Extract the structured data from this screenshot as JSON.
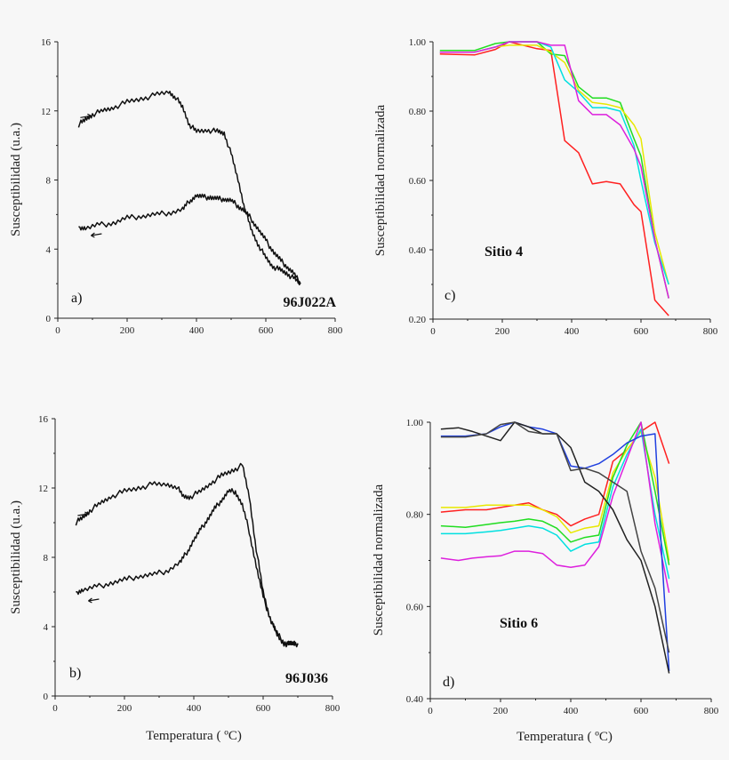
{
  "chart_data": [
    {
      "id": "a",
      "type": "line",
      "panel_label": "a)",
      "annotation": "96J022A",
      "xlabel": "",
      "ylabel": "Susceptibilidad (u.a.)",
      "xlim": [
        0,
        800
      ],
      "ylim": [
        0,
        16
      ],
      "xticks": [
        0,
        200,
        400,
        600,
        800
      ],
      "yticks": [
        0,
        4,
        8,
        12,
        16
      ],
      "ytick_labels": [
        "0",
        "4",
        "8",
        "12",
        "16"
      ],
      "series": [
        {
          "name": "heating",
          "color": "#111111",
          "x": [
            60,
            80,
            100,
            130,
            160,
            200,
            240,
            280,
            320,
            340,
            360,
            380,
            400,
            430,
            460,
            480,
            500,
            520,
            540,
            560,
            580,
            600,
            620,
            640,
            660,
            680,
            700
          ],
          "y": [
            11.2,
            11.5,
            11.8,
            12.0,
            12.2,
            12.5,
            12.7,
            12.9,
            13.1,
            12.8,
            12.2,
            11.2,
            10.8,
            10.9,
            10.8,
            10.7,
            9.5,
            8.0,
            6.3,
            5.0,
            4.2,
            3.5,
            3.0,
            2.8,
            2.6,
            2.3,
            2.0
          ]
        },
        {
          "name": "cooling",
          "color": "#111111",
          "x": [
            700,
            680,
            660,
            640,
            620,
            600,
            580,
            560,
            540,
            520,
            500,
            480,
            460,
            440,
            420,
            400,
            380,
            360,
            320,
            280,
            240,
            200,
            160,
            120,
            80,
            60
          ],
          "y": [
            2.0,
            2.6,
            3.0,
            3.4,
            3.9,
            4.5,
            5.1,
            5.7,
            6.2,
            6.5,
            6.8,
            6.9,
            6.9,
            7.0,
            7.0,
            7.1,
            6.8,
            6.3,
            6.1,
            6.0,
            5.9,
            5.8,
            5.5,
            5.4,
            5.2,
            5.3
          ]
        }
      ]
    },
    {
      "id": "b",
      "type": "line",
      "panel_label": "b)",
      "annotation": "96J036",
      "xlabel": "Temperatura ( ºC)",
      "ylabel": "Susceptibilidad (u.a.)",
      "xlim": [
        0,
        800
      ],
      "ylim": [
        0,
        16
      ],
      "xticks": [
        0,
        200,
        400,
        600,
        800
      ],
      "yticks": [
        0,
        4,
        8,
        12,
        16
      ],
      "ytick_labels": [
        "0",
        "4",
        "8",
        "12",
        "16"
      ],
      "series": [
        {
          "name": "heating",
          "color": "#111111",
          "x": [
            60,
            80,
            100,
            130,
            160,
            200,
            240,
            280,
            320,
            350,
            370,
            390,
            420,
            450,
            480,
            510,
            540,
            560,
            580,
            600,
            620,
            640,
            660,
            680,
            700
          ],
          "y": [
            10.0,
            10.3,
            10.7,
            11.1,
            11.5,
            11.8,
            12.0,
            12.2,
            12.2,
            12.1,
            11.5,
            11.5,
            11.8,
            12.3,
            12.7,
            13.0,
            13.3,
            11.5,
            8.5,
            6.0,
            4.5,
            3.5,
            3.0,
            3.0,
            3.0
          ]
        },
        {
          "name": "cooling",
          "color": "#111111",
          "x": [
            700,
            680,
            660,
            640,
            620,
            600,
            580,
            560,
            540,
            520,
            500,
            480,
            460,
            440,
            420,
            400,
            380,
            360,
            320,
            280,
            240,
            200,
            160,
            120,
            80,
            60
          ],
          "y": [
            3.0,
            3.0,
            3.1,
            3.6,
            4.5,
            5.7,
            7.5,
            9.5,
            11.0,
            11.8,
            11.8,
            11.3,
            10.8,
            10.2,
            9.6,
            9.0,
            8.3,
            7.7,
            7.2,
            7.0,
            6.9,
            6.7,
            6.5,
            6.3,
            6.1,
            6.0
          ]
        }
      ]
    },
    {
      "id": "c",
      "type": "line",
      "panel_label": "c)",
      "annotation": "Sitio 4",
      "xlabel": "",
      "ylabel": "Susceptibilidad normalizada",
      "xlim": [
        0,
        800
      ],
      "ylim": [
        0.2,
        1.0
      ],
      "xticks": [
        0,
        200,
        400,
        600,
        800
      ],
      "yticks": [
        0.2,
        0.4,
        0.6,
        0.8,
        1.0
      ],
      "ytick_labels": [
        "0.20",
        "0.40",
        "0.60",
        "0.80",
        "1.00"
      ],
      "series": [
        {
          "name": "red",
          "color": "#ff2020",
          "x": [
            20,
            120,
            180,
            220,
            300,
            340,
            380,
            420,
            460,
            500,
            540,
            580,
            600,
            640,
            680
          ],
          "y": [
            0.965,
            0.962,
            0.978,
            1.0,
            0.98,
            0.975,
            0.715,
            0.68,
            0.59,
            0.597,
            0.59,
            0.53,
            0.51,
            0.255,
            0.21
          ]
        },
        {
          "name": "green",
          "color": "#20dd20",
          "x": [
            20,
            120,
            180,
            220,
            300,
            340,
            380,
            420,
            460,
            500,
            540,
            580,
            600,
            640,
            680
          ],
          "y": [
            0.975,
            0.975,
            0.995,
            1.0,
            1.0,
            0.965,
            0.96,
            0.87,
            0.838,
            0.838,
            0.825,
            0.72,
            0.67,
            0.43,
            0.26
          ]
        },
        {
          "name": "yellow",
          "color": "#e8e800",
          "x": [
            20,
            120,
            180,
            220,
            300,
            340,
            380,
            420,
            460,
            500,
            540,
            580,
            600,
            640,
            680
          ],
          "y": [
            0.97,
            0.97,
            0.985,
            0.99,
            0.99,
            0.97,
            0.94,
            0.86,
            0.825,
            0.82,
            0.81,
            0.76,
            0.72,
            0.45,
            0.3
          ]
        },
        {
          "name": "cyan",
          "color": "#00e0e0",
          "x": [
            20,
            120,
            180,
            220,
            300,
            340,
            380,
            420,
            460,
            500,
            540,
            580,
            600,
            640,
            680
          ],
          "y": [
            0.97,
            0.97,
            0.985,
            1.0,
            1.0,
            0.985,
            0.89,
            0.855,
            0.81,
            0.81,
            0.8,
            0.7,
            0.6,
            0.42,
            0.3
          ]
        },
        {
          "name": "magenta",
          "color": "#dd20dd",
          "x": [
            20,
            120,
            180,
            220,
            300,
            340,
            380,
            420,
            460,
            500,
            540,
            580,
            600,
            640,
            680
          ],
          "y": [
            0.97,
            0.97,
            0.985,
            1.0,
            1.0,
            0.99,
            0.99,
            0.83,
            0.79,
            0.79,
            0.76,
            0.69,
            0.64,
            0.43,
            0.26
          ]
        }
      ]
    },
    {
      "id": "d",
      "type": "line",
      "panel_label": "d)",
      "annotation": "Sitio 6",
      "xlabel": "Temperatura ( ºC)",
      "ylabel": "Susceptibilidad normalizada",
      "xlim": [
        0,
        800
      ],
      "ylim": [
        0.4,
        1.0
      ],
      "xticks": [
        0,
        200,
        400,
        600,
        800
      ],
      "yticks": [
        0.4,
        0.6,
        0.8,
        1.0
      ],
      "ytick_labels": [
        "0.40",
        "0.60",
        "0.80",
        "1.00"
      ],
      "series": [
        {
          "name": "red",
          "color": "#ff2020",
          "x": [
            30,
            100,
            160,
            200,
            240,
            280,
            320,
            360,
            400,
            440,
            480,
            520,
            560,
            600,
            640,
            680
          ],
          "y": [
            0.805,
            0.81,
            0.81,
            0.815,
            0.82,
            0.825,
            0.81,
            0.8,
            0.775,
            0.79,
            0.8,
            0.915,
            0.94,
            0.98,
            1.0,
            0.91
          ]
        },
        {
          "name": "yellow",
          "color": "#e8e800",
          "x": [
            30,
            100,
            160,
            200,
            240,
            280,
            320,
            360,
            400,
            440,
            480,
            520,
            560,
            600,
            640,
            680
          ],
          "y": [
            0.815,
            0.815,
            0.82,
            0.82,
            0.82,
            0.82,
            0.81,
            0.795,
            0.76,
            0.77,
            0.775,
            0.89,
            0.94,
            0.98,
            0.88,
            0.7
          ]
        },
        {
          "name": "green",
          "color": "#20dd20",
          "x": [
            30,
            100,
            160,
            200,
            240,
            280,
            320,
            360,
            400,
            440,
            480,
            520,
            560,
            600,
            640,
            680
          ],
          "y": [
            0.775,
            0.772,
            0.778,
            0.782,
            0.785,
            0.79,
            0.785,
            0.77,
            0.74,
            0.75,
            0.755,
            0.88,
            0.95,
            1.0,
            0.85,
            0.69
          ]
        },
        {
          "name": "cyan",
          "color": "#00e0e0",
          "x": [
            30,
            100,
            160,
            200,
            240,
            280,
            320,
            360,
            400,
            440,
            480,
            520,
            560,
            600,
            640,
            680
          ],
          "y": [
            0.758,
            0.758,
            0.762,
            0.765,
            0.77,
            0.775,
            0.77,
            0.755,
            0.72,
            0.735,
            0.74,
            0.86,
            0.93,
            0.985,
            0.8,
            0.66
          ]
        },
        {
          "name": "magenta",
          "color": "#dd20dd",
          "x": [
            30,
            80,
            120,
            160,
            200,
            240,
            280,
            320,
            360,
            400,
            440,
            480,
            520,
            560,
            600,
            640,
            680
          ],
          "y": [
            0.705,
            0.7,
            0.705,
            0.708,
            0.71,
            0.72,
            0.72,
            0.715,
            0.69,
            0.685,
            0.69,
            0.73,
            0.84,
            0.92,
            1.0,
            0.78,
            0.63
          ]
        },
        {
          "name": "blue",
          "color": "#2040e0",
          "x": [
            30,
            100,
            160,
            200,
            240,
            280,
            320,
            360,
            400,
            440,
            480,
            520,
            560,
            600,
            640,
            660,
            680
          ],
          "y": [
            0.97,
            0.97,
            0.975,
            0.99,
            1.0,
            0.99,
            0.985,
            0.975,
            0.905,
            0.9,
            0.91,
            0.93,
            0.955,
            0.97,
            0.975,
            0.7,
            0.46
          ]
        },
        {
          "name": "black-1",
          "color": "#222222",
          "x": [
            30,
            80,
            120,
            160,
            200,
            240,
            280,
            320,
            360,
            400,
            440,
            480,
            520,
            560,
            600,
            640,
            680
          ],
          "y": [
            0.985,
            0.988,
            0.98,
            0.97,
            0.96,
            1.0,
            0.99,
            0.975,
            0.975,
            0.945,
            0.87,
            0.85,
            0.81,
            0.745,
            0.7,
            0.6,
            0.455
          ]
        },
        {
          "name": "black-2",
          "color": "#444444",
          "x": [
            30,
            100,
            160,
            200,
            240,
            280,
            320,
            360,
            400,
            440,
            480,
            520,
            560,
            600,
            640,
            680
          ],
          "y": [
            0.968,
            0.968,
            0.975,
            0.995,
            1.0,
            0.98,
            0.975,
            0.975,
            0.895,
            0.9,
            0.89,
            0.87,
            0.85,
            0.72,
            0.64,
            0.5
          ]
        }
      ]
    }
  ]
}
